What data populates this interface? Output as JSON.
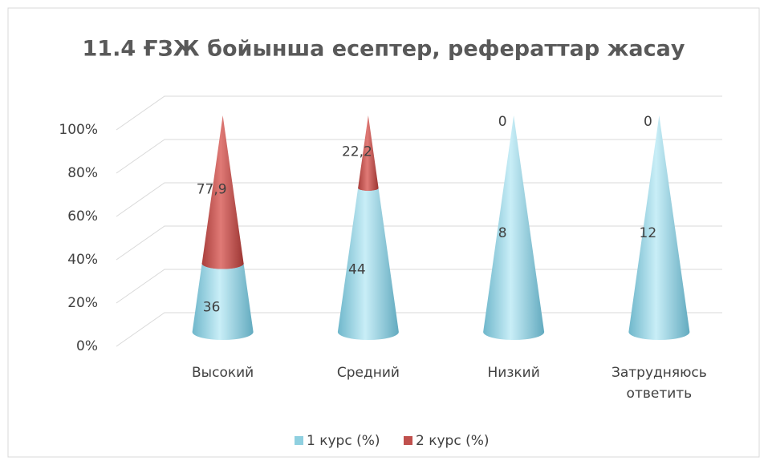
{
  "chart_data": {
    "type": "cone",
    "title": "11.4 ҒЗЖ бойынша есептер, рефераттар жасау",
    "categories": [
      "Высокий",
      "Средний",
      "Низкий",
      "Затрудняюсь ответить"
    ],
    "series": [
      {
        "name": "1 курс (%)",
        "color": "#8fd0e0",
        "values": [
          36,
          44,
          8,
          12
        ]
      },
      {
        "name": "2 курс (%)",
        "color": "#c0504d",
        "values": [
          77.9,
          22.2,
          0,
          0
        ],
        "value_labels": [
          "77,9",
          "22,2",
          "0",
          "0"
        ]
      }
    ],
    "stacking": "percent",
    "ylim": [
      0,
      100
    ],
    "yticks": [
      {
        "value": 0,
        "label": "0%"
      },
      {
        "value": 20,
        "label": "20%"
      },
      {
        "value": 40,
        "label": "40%"
      },
      {
        "value": 60,
        "label": "60%"
      },
      {
        "value": 80,
        "label": "80%"
      },
      {
        "value": 100,
        "label": "100%"
      }
    ],
    "grid": true,
    "legend": "bottom"
  }
}
